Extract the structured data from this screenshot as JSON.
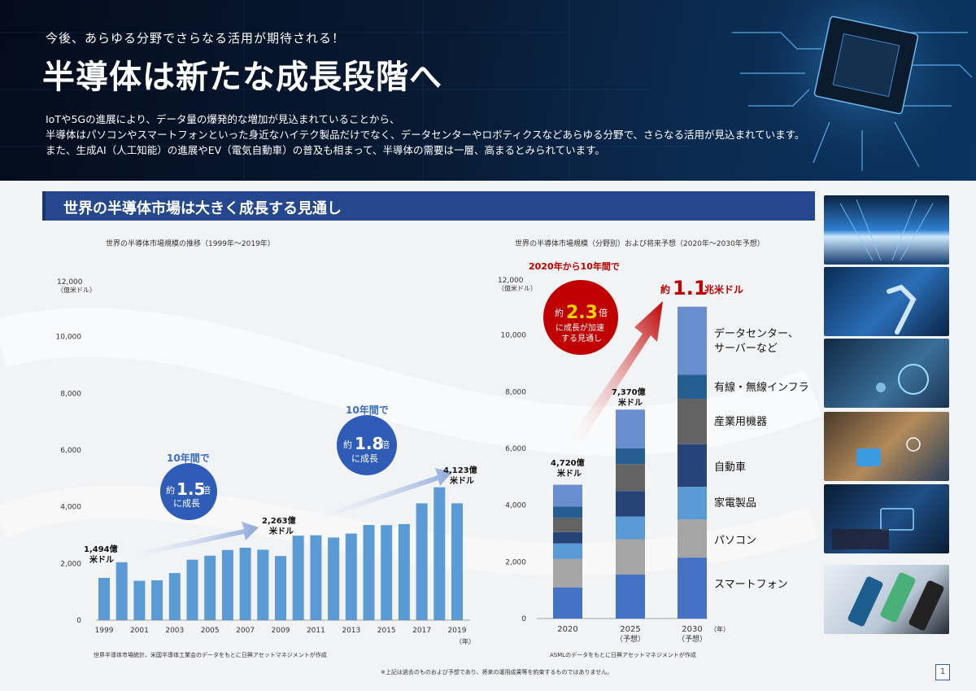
{
  "hero": {
    "subtitle": "今後、あらゆる分野でさらなる活用が期待される！",
    "title": "半導体は新たな成長段階へ",
    "description_lines": [
      "IoTや5Gの進展により、データ量の爆発的な増加が見込まれていることから、",
      "半導体はパソコンやスマートフォンといった身近なハイテク製品だけでなく、データセンターやロボティクスなどあらゆる分野で、さらなる活用が見込まれています。",
      "また、生成AI（人工知能）の進展やEV（電気自動車）の普及も相まって、半導体の需要は一層、高まるとみられています。"
    ]
  },
  "section": {
    "title": "世界の半導体市場は大きく成長する見通し"
  },
  "colors": {
    "navy": "#24478e",
    "bar_blue": "#5b9bd5",
    "red": "#c00000",
    "arrow_blue": "#8eaadb"
  },
  "chart_data": [
    {
      "type": "bar",
      "title": "世界の半導体市場規模の推移（1999年～2019年）",
      "ylabel_unit": "（億米ドル）",
      "ylim": [
        0,
        12000
      ],
      "yticks": [
        "0",
        "2,000",
        "4,000",
        "6,000",
        "8,000",
        "10,000",
        "12,000"
      ],
      "xtick_labels": [
        "1999",
        "2001",
        "2003",
        "2005",
        "2007",
        "2009",
        "2011",
        "2013",
        "2015",
        "2017",
        "2019"
      ],
      "x_unit": "（年）",
      "categories": [
        "1999",
        "2000",
        "2001",
        "2002",
        "2003",
        "2004",
        "2005",
        "2006",
        "2007",
        "2008",
        "2009",
        "2010",
        "2011",
        "2012",
        "2013",
        "2014",
        "2015",
        "2016",
        "2017",
        "2018",
        "2019"
      ],
      "values": [
        1494,
        2044,
        1390,
        1407,
        1663,
        2133,
        2275,
        2477,
        2556,
        2486,
        2263,
        2983,
        2995,
        2916,
        3056,
        3358,
        3352,
        3389,
        4122,
        4688,
        4123
      ],
      "value_labels": [
        {
          "text_lines": [
            "1,494億",
            "米ドル"
          ]
        },
        {
          "text_lines": [
            "2,263億",
            "米ドル"
          ]
        },
        {
          "text_lines": [
            "4,123億",
            "米ドル"
          ]
        }
      ],
      "callouts": [
        {
          "head": "10年間で",
          "circle_lines": [
            "約",
            "1.5",
            "倍",
            "に成長"
          ]
        },
        {
          "head": "10年間で",
          "circle_lines": [
            "約",
            "1.8",
            "倍",
            "に成長"
          ]
        }
      ],
      "source": "世界半導体市場統計、米国半導体工業会のデータをもとに日興アセットマネジメントが作成"
    },
    {
      "type": "bar",
      "stacked": true,
      "title": "世界の半導体市場規模（分野別）および将来予想（2020年～2030年予想）",
      "ylabel_unit": "（億米ドル）",
      "ylim": [
        0,
        12000
      ],
      "yticks": [
        "0",
        "2,000",
        "4,000",
        "6,000",
        "8,000",
        "10,000",
        "12,000"
      ],
      "categories": [
        "2020",
        "2025",
        "2030"
      ],
      "category_notes": [
        "",
        "（予想）",
        "（予想）"
      ],
      "x_unit": "（年）",
      "series": [
        {
          "name": "スマートフォン",
          "color": "#4472c4",
          "values": [
            1100,
            1550,
            2150
          ]
        },
        {
          "name": "パソコン",
          "color": "#a5a5a5",
          "values": [
            1000,
            1250,
            1350
          ]
        },
        {
          "name": "家電製品",
          "color": "#5b9bd5",
          "values": [
            550,
            800,
            1150
          ]
        },
        {
          "name": "自動車",
          "color": "#264478",
          "values": [
            400,
            900,
            1500
          ]
        },
        {
          "name": "産業用機器",
          "color": "#636363",
          "values": [
            500,
            950,
            1600
          ]
        },
        {
          "name": "有線・無線インフラ",
          "color": "#255e91",
          "values": [
            400,
            550,
            850
          ]
        },
        {
          "name": "データセンター、サーバーなど",
          "color": "#698ed0",
          "values": [
            770,
            1370,
            2400
          ]
        }
      ],
      "legend_lines": [
        [
          "スマートフォン"
        ],
        [
          "パソコン"
        ],
        [
          "家電製品"
        ],
        [
          "自動車"
        ],
        [
          "産業用機器"
        ],
        [
          "有線・無線インフラ"
        ],
        [
          "データセンター、",
          "サーバーなど"
        ]
      ],
      "total_labels": [
        {
          "text_lines": [
            "4,720億",
            "米ドル"
          ]
        },
        {
          "text_lines": [
            "7,370億",
            "米ドル"
          ]
        }
      ],
      "headline": {
        "prefix": "約",
        "value": "1.1",
        "suffix": "兆米ドル"
      },
      "callout": {
        "head": "2020年から10年間で",
        "circle_lines": [
          "約",
          "2.3",
          "倍",
          "に成長が加速",
          "する見通し"
        ]
      },
      "source": "ASMLのデータをもとに日興アセットマネジメントが作成"
    }
  ],
  "footer": {
    "disclaimer": "※上記は過去のものおよび予想であり、将来の運用成果等を約束するものではありません。",
    "page_number": "1"
  },
  "side_images": [
    "data-center-photo",
    "robot-arm-photo",
    "car-dashboard-photo",
    "smart-home-photo",
    "laptop-ai-photo",
    "smartphones-photo"
  ]
}
